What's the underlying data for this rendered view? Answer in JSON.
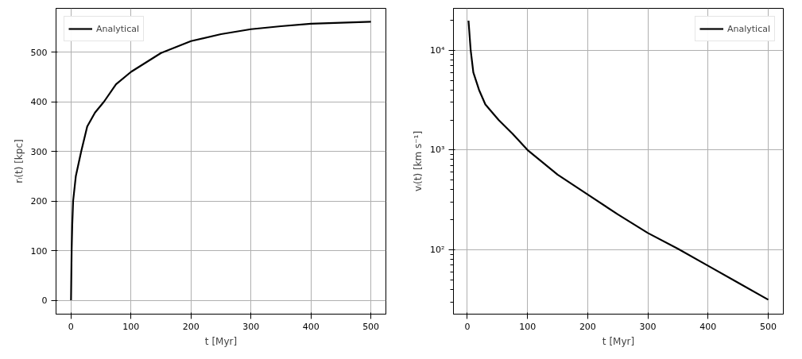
{
  "chart_data": [
    {
      "type": "line",
      "xlabel": "t [Myr]",
      "ylabel": "rₗ(t) [kpc]",
      "x": [
        0,
        1,
        2,
        3.5,
        8,
        17,
        27,
        40,
        55,
        75,
        100,
        150,
        200,
        250,
        300,
        350,
        400,
        450,
        500
      ],
      "series": [
        {
          "name": "Analytical",
          "color": "#000000",
          "values": [
            0,
            100,
            150,
            200,
            250,
            300,
            350,
            378,
            400,
            435,
            460,
            498,
            522,
            536,
            546,
            552,
            557,
            559,
            561
          ]
        }
      ],
      "xlim": [
        -25,
        525
      ],
      "ylim": [
        -28,
        588
      ],
      "xticks": [
        0,
        100,
        200,
        300,
        400,
        500
      ],
      "yticks": [
        0,
        100,
        200,
        300,
        400,
        500
      ],
      "grid": true,
      "legend": "top left",
      "line_style": "solid"
    },
    {
      "type": "line",
      "xlabel": "t [Myr]",
      "ylabel": "vₗ(t) [km s⁻¹]",
      "x": [
        2,
        5.6,
        10,
        19.5,
        30,
        52,
        75,
        100,
        150,
        200,
        250,
        300,
        350,
        400,
        450,
        500
      ],
      "series": [
        {
          "name": "Analytical",
          "color": "#000000",
          "values": [
            19800,
            10000,
            6000,
            4000,
            2860,
            2000,
            1460,
            1000,
            566,
            358,
            226,
            147,
            102,
            69,
            46.6,
            31.5
          ]
        }
      ],
      "xlim": [
        -23,
        525
      ],
      "ylim": [
        22.6,
        26300
      ],
      "xticks": [
        0,
        100,
        200,
        300,
        400,
        500
      ],
      "yticks": [
        {
          "value": 100,
          "label": "10²"
        },
        {
          "value": 1000,
          "label": "10³"
        },
        {
          "value": 10000,
          "label": "10⁴"
        }
      ],
      "log": "y",
      "grid": true,
      "legend": "top right",
      "line_style": "solid"
    }
  ]
}
